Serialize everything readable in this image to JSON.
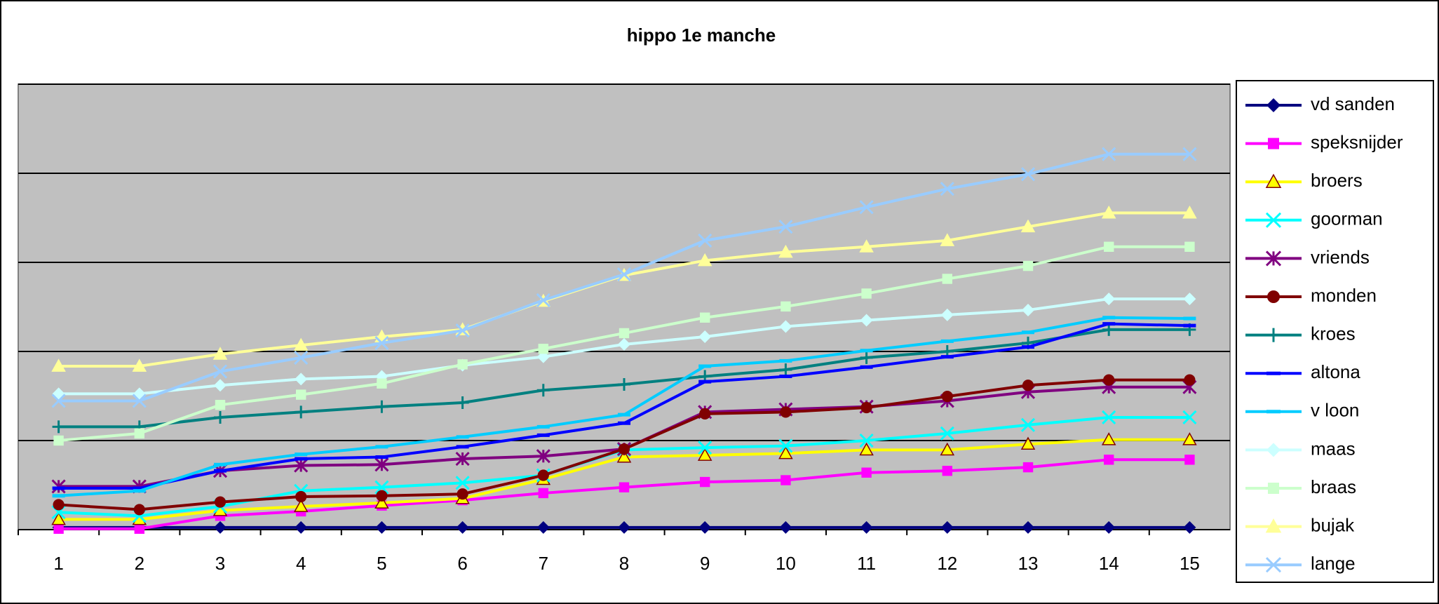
{
  "chart_data": {
    "type": "line",
    "title": "hippo 1e manche",
    "categories": [
      "1",
      "2",
      "3",
      "4",
      "5",
      "6",
      "7",
      "8",
      "9",
      "10",
      "11",
      "12",
      "13",
      "14",
      "15"
    ],
    "ylim": [
      0,
      100
    ],
    "yticks": [
      0,
      20,
      40,
      60,
      80,
      100
    ],
    "ytick_labels": false,
    "grid": true,
    "legend": "right",
    "series": [
      {
        "name": "vd sanden",
        "color": "#000080",
        "marker": "diamond",
        "values": [
          0.5,
          0.5,
          0.5,
          0.5,
          0.5,
          0.5,
          0.5,
          0.5,
          0.5,
          0.5,
          0.5,
          0.5,
          0.5,
          0.5,
          0.5
        ]
      },
      {
        "name": "speksnijder",
        "color": "#FF00FF",
        "marker": "square",
        "values": [
          0.2,
          0.2,
          3.1,
          4.1,
          5.4,
          6.6,
          8.2,
          9.5,
          10.7,
          11.1,
          12.8,
          13.2,
          14.0,
          15.7,
          15.7
        ]
      },
      {
        "name": "broers",
        "color": "#FFFF00",
        "marker": "triangle",
        "values": [
          2.3,
          2.3,
          4.3,
          5.2,
          6.0,
          7.0,
          11.3,
          16.3,
          16.7,
          17.1,
          17.9,
          17.9,
          19.2,
          20.2,
          20.2
        ]
      },
      {
        "name": "goorman",
        "color": "#00FFFF",
        "marker": "x",
        "values": [
          3.9,
          3.1,
          5.2,
          8.7,
          9.5,
          10.5,
          12.2,
          17.9,
          18.4,
          18.8,
          20.0,
          21.6,
          23.5,
          25.2,
          25.2
        ]
      },
      {
        "name": "vriends",
        "color": "#800080",
        "marker": "star",
        "values": [
          9.7,
          9.7,
          13.2,
          14.4,
          14.6,
          15.9,
          16.5,
          18.1,
          26.4,
          27.0,
          27.6,
          28.9,
          30.9,
          32.0,
          32.0
        ]
      },
      {
        "name": "monden",
        "color": "#800000",
        "marker": "circle",
        "values": [
          5.6,
          4.5,
          6.2,
          7.4,
          7.6,
          8.0,
          12.2,
          18.1,
          26.0,
          26.4,
          27.4,
          29.9,
          32.4,
          33.6,
          33.6
        ]
      },
      {
        "name": "kroes",
        "color": "#008080",
        "marker": "plus",
        "values": [
          23.1,
          23.1,
          25.2,
          26.4,
          27.6,
          28.5,
          31.3,
          32.6,
          34.4,
          35.9,
          38.6,
          40.0,
          41.9,
          44.9,
          44.9
        ]
      },
      {
        "name": "altona",
        "color": "#0000FF",
        "marker": "dash",
        "values": [
          9.3,
          9.3,
          13.2,
          15.9,
          16.3,
          18.6,
          21.2,
          23.9,
          33.2,
          34.4,
          36.5,
          38.8,
          41.0,
          46.2,
          45.8
        ]
      },
      {
        "name": "v loon",
        "color": "#00CCFF",
        "marker": "dash",
        "values": [
          7.6,
          8.7,
          14.6,
          16.9,
          18.6,
          20.8,
          23.1,
          25.8,
          36.7,
          37.9,
          40.2,
          42.3,
          44.3,
          47.6,
          47.4
        ]
      },
      {
        "name": "maas",
        "color": "#CCFFFF",
        "marker": "diamond",
        "values": [
          30.5,
          30.5,
          32.4,
          33.8,
          34.4,
          36.9,
          38.8,
          41.6,
          43.3,
          45.6,
          47.0,
          48.2,
          49.3,
          51.8,
          51.8
        ]
      },
      {
        "name": "braas",
        "color": "#CCFFCC",
        "marker": "square",
        "values": [
          20.0,
          21.6,
          28.0,
          30.3,
          32.8,
          37.1,
          40.6,
          44.1,
          47.6,
          50.1,
          53.0,
          56.3,
          59.2,
          63.5,
          63.5
        ]
      },
      {
        "name": "bujak",
        "color": "#FFFF99",
        "marker": "triangle",
        "values": [
          36.7,
          36.7,
          39.4,
          41.4,
          43.3,
          44.9,
          51.3,
          57.1,
          60.4,
          62.3,
          63.5,
          64.9,
          68.0,
          71.1,
          71.1
        ]
      },
      {
        "name": "lange",
        "color": "#99CCFF",
        "marker": "x",
        "values": [
          28.9,
          28.9,
          35.5,
          38.6,
          41.9,
          44.7,
          51.5,
          57.3,
          64.9,
          68.0,
          72.4,
          76.5,
          79.8,
          84.3,
          84.3
        ]
      }
    ]
  }
}
